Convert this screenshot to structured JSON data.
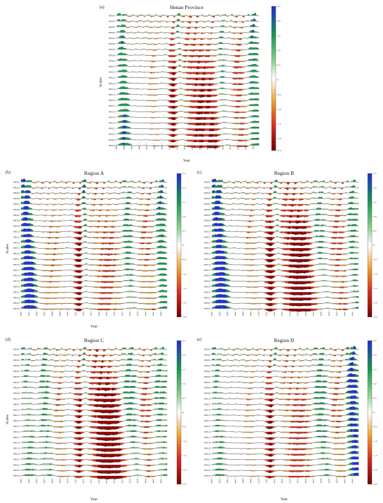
{
  "figure": {
    "panel_labels": [
      "(a)",
      "(b)",
      "(c)",
      "(d)",
      "(e)"
    ]
  },
  "colors": {
    "dry_extreme": "#8b0000",
    "dry": "#d7301f",
    "dry_mild": "#f0a030",
    "neutral": "#ffffff",
    "wet_mild": "#8fd18f",
    "wet": "#1a9850",
    "wet_extreme": "#1f2fd0",
    "line": "#111111"
  },
  "chart_data": [
    {
      "type": "area",
      "panel": "(a)",
      "title": "Henan Province",
      "xlabel": "Year",
      "ylabel": "Scales",
      "series_names": [
        "SPEI01",
        "SPEI02",
        "SPEI03",
        "SPEI04",
        "SPEI05",
        "SPEI06",
        "SPEI07",
        "SPEI08",
        "SPEI09",
        "SPEI10",
        "SPEI11",
        "SPEI12",
        "SPEI13",
        "SPEI14",
        "SPEI15",
        "SPEI16",
        "SPEI17",
        "SPEI18",
        "SPEI19",
        "SPEI20",
        "SPEI21",
        "SPEI22",
        "SPEI23",
        "SPEI24"
      ],
      "x_ticks": [
        "2004",
        "2005",
        "2006",
        "2007",
        "2008",
        "2009",
        "2010",
        "2011",
        "2012",
        "2013",
        "2014",
        "2015",
        "2016",
        "2017",
        "2018",
        "2019",
        "2020",
        "2021",
        "2022"
      ],
      "colorbar_ticks": [
        "2.5",
        "2.0",
        "1.5",
        "1.0",
        "0.5",
        "0",
        "-0.5",
        "-1.0",
        "-1.5",
        "-2.0",
        "-2.4"
      ],
      "colorbar_range": [
        -2.4,
        2.5
      ],
      "x_range": [
        2004,
        2022.8
      ],
      "wet_events": [
        [
          2004.2,
          2005.0,
          1.6
        ],
        [
          2011.8,
          2012.3,
          1.1
        ],
        [
          2017.3,
          2018.0,
          0.7
        ],
        [
          2021.4,
          2022.3,
          1.3
        ]
      ],
      "dry_events": [
        [
          2008.2,
          2009.0,
          -0.5
        ],
        [
          2010.8,
          2011.7,
          -1.7
        ],
        [
          2012.5,
          2015.2,
          -1.5
        ],
        [
          2016.0,
          2017.0,
          -0.6
        ],
        [
          2019.2,
          2020.3,
          -1.0
        ]
      ]
    },
    {
      "type": "area",
      "panel": "(b)",
      "title": "Region A",
      "xlabel": "Year",
      "ylabel": "Scales",
      "series_names": [
        "SPEI01",
        "SPEI02",
        "SPEI03",
        "SPEI04",
        "SPEI05",
        "SPEI06",
        "SPEI07",
        "SPEI08",
        "SPEI09",
        "SPEI10",
        "SPEI11",
        "SPEI12",
        "SPEI13",
        "SPEI14",
        "SPEI15",
        "SPEI16",
        "SPEI17",
        "SPEI18",
        "SPEI19",
        "SPEI20",
        "SPEI21",
        "SPEI22",
        "SPEI23",
        "SPEI24"
      ],
      "x_ticks": [
        "2004",
        "2005",
        "2006",
        "2007",
        "2008",
        "2009",
        "2010",
        "2011",
        "2012",
        "2013",
        "2014",
        "2015",
        "2016",
        "2017",
        "2018",
        "2019",
        "2020",
        "2021",
        "2022"
      ],
      "colorbar_ticks": [
        "2.5",
        "2.0",
        "1.5",
        "1.0",
        "0.5",
        "0",
        "-0.5",
        "-1.0",
        "-1.5",
        "-2.0",
        "-2.5"
      ],
      "colorbar_range": [
        -2.5,
        2.5
      ],
      "x_range": [
        2004,
        2022.8
      ],
      "wet_events": [
        [
          2003.9,
          2005.0,
          2.2
        ],
        [
          2011.8,
          2012.2,
          1.7
        ],
        [
          2017.0,
          2017.9,
          1.0
        ],
        [
          2021.4,
          2022.2,
          1.5
        ]
      ],
      "dry_events": [
        [
          2006.3,
          2008.2,
          -0.6
        ],
        [
          2010.8,
          2011.7,
          -1.8
        ],
        [
          2012.5,
          2015.2,
          -0.9
        ],
        [
          2019.0,
          2020.4,
          -0.8
        ]
      ]
    },
    {
      "type": "area",
      "panel": "(c)",
      "title": "Region B",
      "xlabel": "",
      "ylabel": "",
      "series_names": [
        "SPEI01",
        "SPEI02",
        "SPEI03",
        "SPEI04",
        "SPEI05",
        "SPEI06",
        "SPEI07",
        "SPEI08",
        "SPEI09",
        "SPEI10",
        "SPEI11",
        "SPEI12",
        "SPEI13",
        "SPEI14",
        "SPEI15",
        "SPEI16",
        "SPEI17",
        "SPEI18",
        "SPEI19",
        "SPEI20",
        "SPEI21",
        "SPEI22",
        "SPEI23",
        "SPEI24"
      ],
      "x_ticks": [
        "2004",
        "2005",
        "2006",
        "2007",
        "2008",
        "2009",
        "2010",
        "2011",
        "2012",
        "2013",
        "2014",
        "2015",
        "2016",
        "2017",
        "2018",
        "2019",
        "2020",
        "2021",
        "2022"
      ],
      "colorbar_ticks": [
        "2.5",
        "2.0",
        "1.5",
        "1.0",
        "0.5",
        "0",
        "-0.5",
        "-1.0",
        "-1.5",
        "-2.0",
        "-2.5"
      ],
      "colorbar_range": [
        -2.5,
        2.5
      ],
      "x_range": [
        2004,
        2022.8
      ],
      "wet_events": [
        [
          2003.9,
          2005.1,
          2.2
        ],
        [
          2011.8,
          2012.3,
          1.0
        ],
        [
          2016.8,
          2018.0,
          0.8
        ],
        [
          2021.3,
          2022.3,
          1.0
        ]
      ],
      "dry_events": [
        [
          2008.2,
          2009.2,
          -0.6
        ],
        [
          2010.8,
          2011.7,
          -2.0
        ],
        [
          2012.6,
          2015.4,
          -2.0
        ],
        [
          2019.0,
          2020.5,
          -0.9
        ]
      ]
    },
    {
      "type": "area",
      "panel": "(d)",
      "title": "Region C",
      "xlabel": "Year",
      "ylabel": "Scales",
      "series_names": [
        "SPEI01",
        "SPEI02",
        "SPEI03",
        "SPEI04",
        "SPEI05",
        "SPEI06",
        "SPEI07",
        "SPEI08",
        "SPEI09",
        "SPEI10",
        "SPEI11",
        "SPEI12",
        "SPEI13",
        "SPEI14",
        "SPEI15",
        "SPEI16",
        "SPEI17",
        "SPEI18",
        "SPEI19",
        "SPEI20",
        "SPEI21",
        "SPEI22",
        "SPEI23",
        "SPEI24"
      ],
      "x_ticks": [
        "2004",
        "2005",
        "2006",
        "2007",
        "2008",
        "2009",
        "2010",
        "2011",
        "2012",
        "2013",
        "2014",
        "2015",
        "2016",
        "2017",
        "2018",
        "2019",
        "2020",
        "2021",
        "2022"
      ],
      "colorbar_ticks": [
        "2.5",
        "2.0",
        "1.5",
        "1.0",
        "0.5",
        "0",
        "-0.5",
        "-1.0",
        "-1.5",
        "-2.0",
        "-2.5"
      ],
      "colorbar_range": [
        -2.5,
        2.5
      ],
      "x_range": [
        2004,
        2022.8
      ],
      "wet_events": [
        [
          2004.0,
          2005.0,
          0.8
        ],
        [
          2006.3,
          2007.3,
          0.9
        ],
        [
          2011.8,
          2012.2,
          1.0
        ],
        [
          2016.8,
          2018.3,
          1.0
        ],
        [
          2020.8,
          2022.3,
          0.9
        ]
      ],
      "dry_events": [
        [
          2008.2,
          2009.1,
          -0.7
        ],
        [
          2010.8,
          2011.7,
          -1.6
        ],
        [
          2012.5,
          2015.4,
          -2.2
        ],
        [
          2019.0,
          2020.3,
          -0.9
        ]
      ]
    },
    {
      "type": "area",
      "panel": "(e)",
      "title": "Region D",
      "xlabel": "Year",
      "ylabel": "",
      "series_names": [
        "SPEI01",
        "SPEI02",
        "SPEI03",
        "SPEI04",
        "SPEI05",
        "SPEI06",
        "SPEI07",
        "SPEI08",
        "SPEI09",
        "SPEI10",
        "SPEI11",
        "SPEI12",
        "SPEI13",
        "SPEI14",
        "SPEI15",
        "SPEI16",
        "SPEI17",
        "SPEI18",
        "SPEI19",
        "SPEI20",
        "SPEI21",
        "SPEI22",
        "SPEI23",
        "SPEI24"
      ],
      "x_ticks": [
        "2004",
        "2005",
        "2006",
        "2007",
        "2008",
        "2009",
        "2010",
        "2011",
        "2012",
        "2013",
        "2014",
        "2015",
        "2016",
        "2017",
        "2018",
        "2019",
        "2020",
        "2021",
        "2022"
      ],
      "colorbar_ticks": [
        "2.5",
        "2.0",
        "1.5",
        "1.0",
        "0.5",
        "0",
        "-0.5",
        "-1.0",
        "-1.5",
        "-2.0",
        "-2.5"
      ],
      "colorbar_range": [
        -2.5,
        2.5
      ],
      "x_range": [
        2004,
        2022.8
      ],
      "wet_events": [
        [
          2004.0,
          2004.9,
          0.9
        ],
        [
          2011.8,
          2012.2,
          0.9
        ],
        [
          2016.8,
          2018.2,
          1.0
        ],
        [
          2021.2,
          2022.3,
          2.0
        ]
      ],
      "dry_events": [
        [
          2008.2,
          2009.0,
          -0.5
        ],
        [
          2010.8,
          2011.7,
          -1.7
        ],
        [
          2012.5,
          2015.2,
          -1.0
        ],
        [
          2019.0,
          2020.3,
          -0.8
        ]
      ]
    }
  ]
}
